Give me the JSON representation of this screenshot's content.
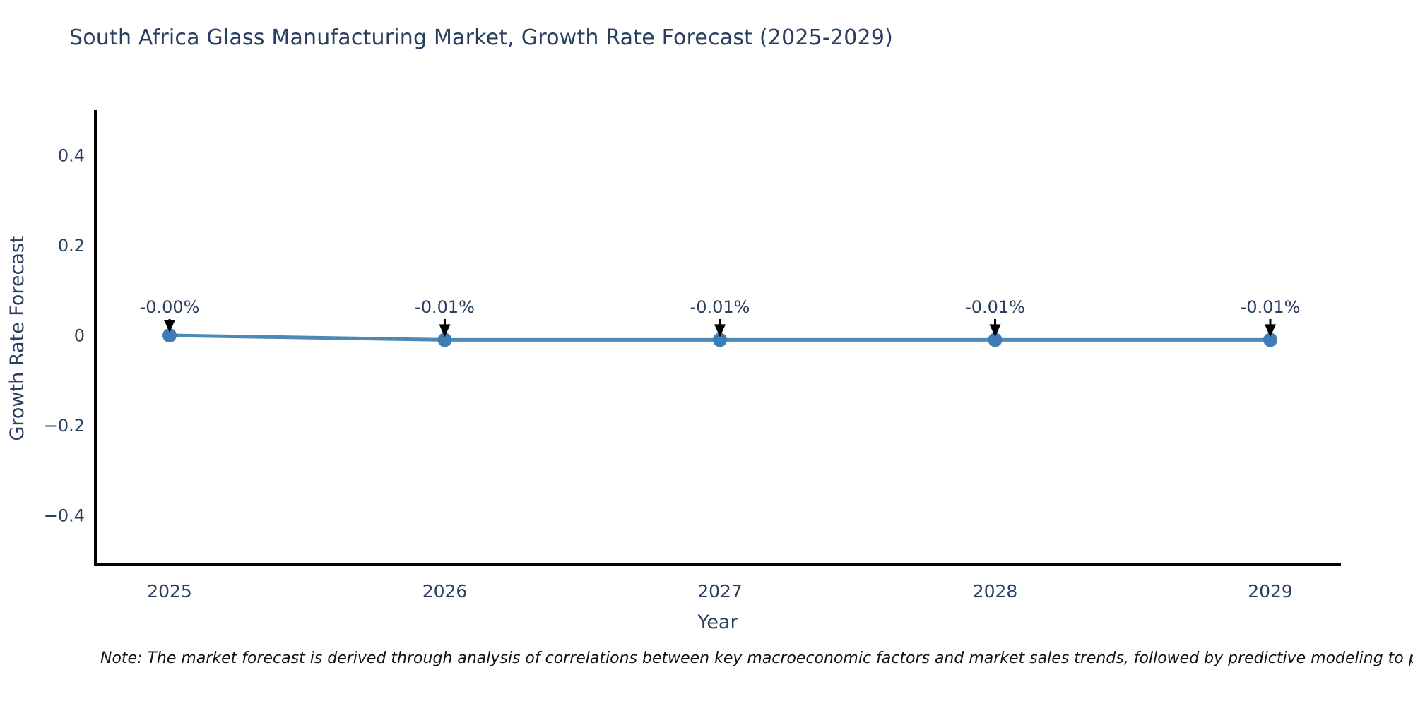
{
  "title": "South Africa Glass Manufacturing Market, Growth Rate Forecast (2025-2029)",
  "note": "Note: The market forecast is derived through analysis of correlations between key macroeconomic factors and market sales trends, followed by predictive modeling to project future sales.",
  "chart_data": {
    "type": "line",
    "title": "South Africa Glass Manufacturing Market, Growth Rate Forecast (2025-2029)",
    "xlabel": "Year",
    "ylabel": "Growth Rate Forecast",
    "x": [
      2025,
      2026,
      2027,
      2028,
      2029
    ],
    "x_tick_labels": [
      "2025",
      "2026",
      "2027",
      "2028",
      "2029"
    ],
    "series": [
      {
        "name": "Growth Rate Forecast",
        "values": [
          -0.0,
          -0.01,
          -0.01,
          -0.01,
          -0.01
        ],
        "unit": "percent"
      }
    ],
    "point_labels": [
      "-0.00%",
      "-0.01%",
      "-0.01%",
      "-0.01%",
      "-0.01%"
    ],
    "y_ticks": [
      0.4,
      0.2,
      0,
      -0.2,
      -0.4
    ],
    "y_tick_labels": [
      "0.4",
      "0.2",
      "0",
      "−0.2",
      "−0.4"
    ],
    "ylim": [
      -0.51,
      0.5
    ],
    "grid": false,
    "legend_position": "none",
    "annotations_have_arrows": true,
    "colors": {
      "line": "#4c8ab3",
      "marker": "#3e7cb6",
      "axis": "#000000",
      "chart_text": "#2a3f5f",
      "annotation_text": "#2a3f5f",
      "annotation_arrow": "#000000",
      "note_text": "#111111",
      "background": "#ffffff"
    }
  }
}
